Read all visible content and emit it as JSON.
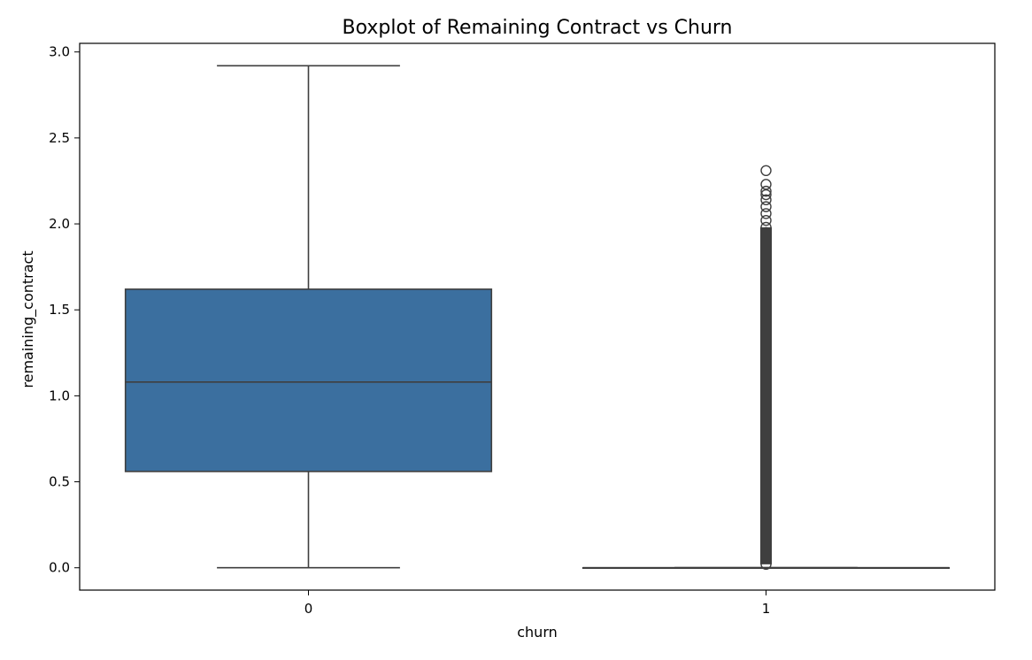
{
  "chart_data": {
    "type": "boxplot",
    "title": "Boxplot of Remaining Contract vs Churn",
    "xlabel": "churn",
    "ylabel": "remaining_contract",
    "categories": [
      "0",
      "1"
    ],
    "ylim": [
      -0.13,
      3.05
    ],
    "yticks": [
      0.0,
      0.5,
      1.0,
      1.5,
      2.0,
      2.5,
      3.0
    ],
    "ytick_labels": [
      "0.0",
      "0.5",
      "1.0",
      "1.5",
      "2.0",
      "2.5",
      "3.0"
    ],
    "grid": false,
    "box_color": "#3b6f9f",
    "line_color": "#3f3f3f",
    "boxes": [
      {
        "category": "0",
        "whisker_low": 0.0,
        "q1": 0.56,
        "median": 1.08,
        "q3": 1.62,
        "whisker_high": 2.92,
        "outliers": []
      },
      {
        "category": "1",
        "whisker_low": 0.0,
        "q1": 0.0,
        "median": 0.0,
        "q3": 0.0,
        "whisker_high": 0.0,
        "outliers": [
          0.02,
          0.1,
          0.2,
          0.3,
          0.4,
          0.5,
          0.6,
          0.7,
          0.8,
          0.9,
          1.0,
          1.1,
          1.2,
          1.3,
          1.4,
          1.5,
          1.6,
          1.7,
          1.8,
          1.9,
          1.95,
          1.98,
          2.02,
          2.06,
          2.1,
          2.14,
          2.17,
          2.19,
          2.23,
          2.31
        ]
      }
    ]
  }
}
